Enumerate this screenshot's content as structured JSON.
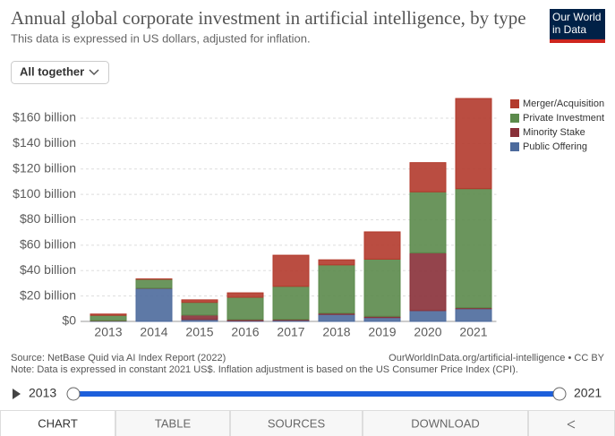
{
  "ui": {
    "logo": "Our World in Data",
    "dropdown": "All together",
    "source": "Source: NetBase Quid via AI Index Report (2022)",
    "url": "OurWorldInData.org/artificial-intelligence • CC BY",
    "note": "Note: Data is expressed in constant 2021 US$. Inflation adjustment is based on the US Consumer Price Index (CPI).",
    "timeline_start": "2013",
    "timeline_end": "2021",
    "tabs": [
      "CHART",
      "TABLE",
      "SOURCES",
      "DOWNLOAD"
    ]
  },
  "chart_data": {
    "type": "stacked_bar",
    "title": "Annual global corporate investment in artificial intelligence, by type",
    "subtitle": "This data is expressed in US dollars, adjusted for inflation.",
    "categories": [
      "2013",
      "2014",
      "2015",
      "2016",
      "2017",
      "2018",
      "2019",
      "2020",
      "2021"
    ],
    "series": [
      {
        "name": "Merger/Acquisition",
        "color": "#b33a2c",
        "values": [
          1.0,
          0.3,
          2,
          3.5,
          24.5,
          4,
          21.5,
          23,
          71
        ]
      },
      {
        "name": "Private Investment",
        "color": "#5b8a4b",
        "values": [
          4.2,
          7,
          10,
          17.5,
          26,
          38,
          45,
          48,
          93.7
        ]
      },
      {
        "name": "Minority Stake",
        "color": "#883039",
        "values": [
          0.3,
          0.2,
          3.5,
          1,
          0.8,
          1,
          1,
          45.5,
          0.8
        ]
      },
      {
        "name": "Public Offering",
        "color": "#4c6a9c",
        "values": [
          0.3,
          26,
          1.5,
          0.5,
          0.8,
          5.5,
          3,
          8.5,
          10
        ]
      }
    ],
    "ylim": [
      0,
      176
    ],
    "yticks": [
      {
        "value": 0,
        "label": "$0"
      },
      {
        "value": 20,
        "label": "$20 billion"
      },
      {
        "value": 40,
        "label": "$40 billion"
      },
      {
        "value": 60,
        "label": "$60 billion"
      },
      {
        "value": 80,
        "label": "$80 billion"
      },
      {
        "value": 100,
        "label": "$100 billion"
      },
      {
        "value": 120,
        "label": "$120 billion"
      },
      {
        "value": 140,
        "label": "$140 billion"
      },
      {
        "value": 160,
        "label": "$160 billion"
      }
    ],
    "grid": true,
    "legend": "right"
  }
}
